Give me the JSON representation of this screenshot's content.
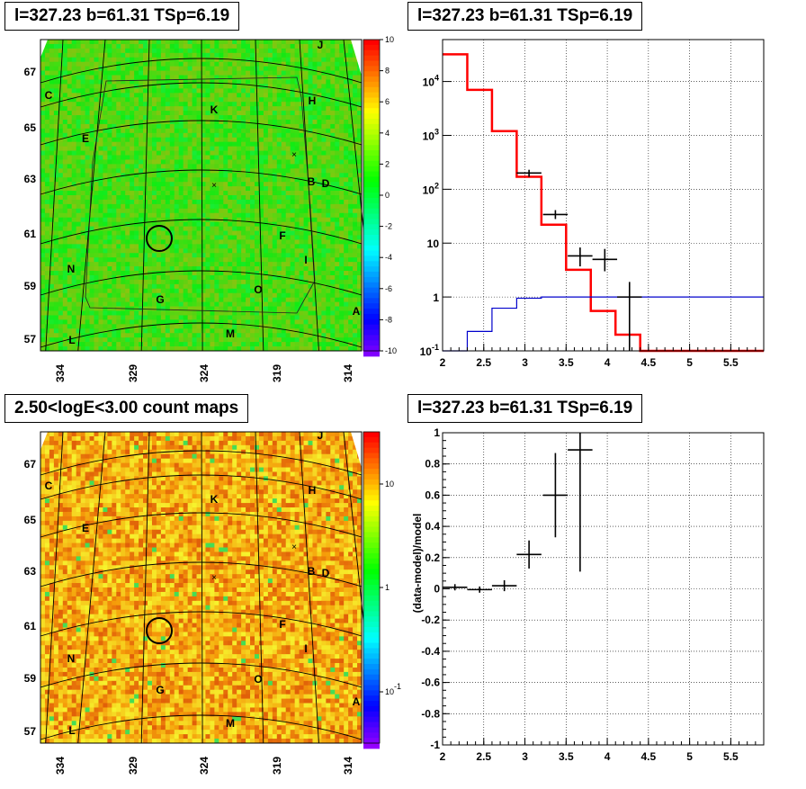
{
  "panels": {
    "tl_title": "l=327.23 b=61.31 TSp=6.19",
    "tr_title": "l=327.23 b=61.31 TSp=6.19",
    "bl_title": "2.50<logE<3.00 count maps",
    "br_title": "l=327.23 b=61.31 TSp=6.19"
  },
  "sky_maps": {
    "lon_ticks": [
      "334",
      "329",
      "324",
      "319",
      "314"
    ],
    "lat_ticks": [
      "67",
      "65",
      "63",
      "61",
      "59",
      "57"
    ],
    "source_labels": [
      "J",
      "C",
      "K",
      "H",
      "E",
      "B",
      "D",
      "F",
      "I",
      "N",
      "G",
      "O",
      "A",
      "L",
      "M"
    ],
    "tl_colorbar_ticks": [
      "10",
      "8",
      "6",
      "4",
      "2",
      "0",
      "-2",
      "-4",
      "-6",
      "-8",
      "-10"
    ],
    "bl_colorbar_ticks": [
      "10",
      "1",
      "10^-1"
    ],
    "colors": {
      "tl_map": "#33dd22",
      "bl_map": "#f0c020",
      "circle": "#000000"
    }
  },
  "chart_data": [
    {
      "type": "step",
      "title": "l=327.23 b=61.31 TSp=6.19",
      "xlabel": "",
      "ylabel": "",
      "xlim": [
        2,
        5.9
      ],
      "ylim": [
        0.1,
        60000
      ],
      "yscale": "log",
      "grid": true,
      "x_ticks": [
        "2",
        "2.5",
        "3",
        "3.5",
        "4",
        "4.5",
        "5",
        "5.5"
      ],
      "y_ticks": [
        "10^-1",
        "1",
        "10",
        "10^2",
        "10^3",
        "10^4"
      ],
      "series": [
        {
          "color": "#ff0000",
          "edges": [
            2.0,
            2.3,
            2.6,
            2.9,
            3.2,
            3.5,
            3.8,
            4.1,
            4.4,
            4.7,
            5.0,
            5.3,
            5.6,
            5.9
          ],
          "values": [
            32000,
            7000,
            1200,
            170,
            22,
            3.2,
            0.55,
            0.2,
            0.1,
            0.1,
            0.1,
            0.1,
            0.1
          ]
        },
        {
          "color": "#0000cc",
          "edges": [
            2.0,
            2.3,
            2.6,
            2.9,
            3.2,
            3.5,
            3.8,
            4.1,
            4.4,
            4.7,
            5.0,
            5.3,
            5.6,
            5.9
          ],
          "values": [
            0.08,
            0.23,
            0.62,
            0.95,
            1.0,
            1.0,
            1.0,
            1.0,
            1.0,
            1.0,
            1.0,
            1.0,
            1.0
          ]
        },
        {
          "color": "#000000",
          "points": [
            {
              "x": 3.05,
              "y": 200,
              "xerr": 0.15,
              "ylo": 170,
              "yhi": 230
            },
            {
              "x": 3.37,
              "y": 34,
              "xerr": 0.15,
              "ylo": 28,
              "yhi": 41
            },
            {
              "x": 3.67,
              "y": 5.8,
              "xerr": 0.15,
              "ylo": 3.7,
              "yhi": 8.3
            },
            {
              "x": 3.97,
              "y": 5.0,
              "xerr": 0.15,
              "ylo": 3.0,
              "yhi": 7.8
            },
            {
              "x": 4.27,
              "y": 1.0,
              "xerr": 0.15,
              "ylo": 0.1,
              "yhi": 1.9
            }
          ]
        }
      ]
    },
    {
      "type": "errorbar",
      "title": "l=327.23 b=61.31 TSp=6.19",
      "xlabel": "",
      "ylabel": "(data-model)/model",
      "xlim": [
        2,
        5.9
      ],
      "ylim": [
        -1,
        1
      ],
      "grid": true,
      "x_ticks": [
        "2",
        "2.5",
        "3",
        "3.5",
        "4",
        "4.5",
        "5",
        "5.5"
      ],
      "y_ticks": [
        "-1",
        "-0.8",
        "-0.6",
        "-0.4",
        "-0.2",
        "0",
        "0.2",
        "0.4",
        "0.6",
        "0.8",
        "1"
      ],
      "series": [
        {
          "color": "#000000",
          "points": [
            {
              "x": 2.15,
              "y": 0.01,
              "xerr": 0.15,
              "ylo": -0.01,
              "yhi": 0.03
            },
            {
              "x": 2.45,
              "y": -0.005,
              "xerr": 0.15,
              "ylo": -0.025,
              "yhi": 0.015
            },
            {
              "x": 2.75,
              "y": 0.02,
              "xerr": 0.15,
              "ylo": -0.015,
              "yhi": 0.055
            },
            {
              "x": 3.05,
              "y": 0.22,
              "xerr": 0.15,
              "ylo": 0.13,
              "yhi": 0.31
            },
            {
              "x": 3.37,
              "y": 0.6,
              "xerr": 0.15,
              "ylo": 0.33,
              "yhi": 0.87
            },
            {
              "x": 3.67,
              "y": 0.89,
              "xerr": 0.15,
              "ylo": 0.11,
              "yhi": 1.0
            }
          ]
        }
      ]
    }
  ]
}
